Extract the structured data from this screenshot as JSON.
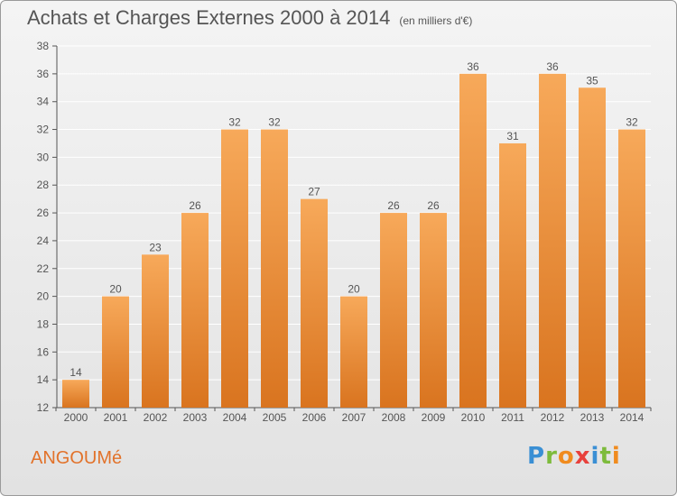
{
  "page": {
    "title": "Achats et Charges Externes 2000 à 2014",
    "unit_note": "(en milliers d'€)",
    "location": "ANGOUMé",
    "logo": "Proxiti"
  },
  "colors": {
    "bar_light": "#f7a95a",
    "bar_dark": "#d9741f",
    "axis": "#555555",
    "grid": "#ffffff",
    "city_text": "#e2722a"
  },
  "chart_data": {
    "type": "bar",
    "title": "Achats et Charges Externes 2000 à 2014",
    "subtitle": "(en milliers d'€)",
    "xlabel": "",
    "ylabel": "",
    "categories": [
      "2000",
      "2001",
      "2002",
      "2003",
      "2004",
      "2005",
      "2006",
      "2007",
      "2008",
      "2009",
      "2010",
      "2011",
      "2012",
      "2013",
      "2014"
    ],
    "values": [
      14,
      20,
      23,
      26,
      32,
      32,
      27,
      20,
      26,
      26,
      36,
      31,
      36,
      35,
      32
    ],
    "data_labels": [
      "14",
      "20",
      "23",
      "26",
      "32",
      "32",
      "27",
      "20",
      "26",
      "26",
      "36",
      "31",
      "36",
      "35",
      "32"
    ],
    "ylim": [
      12,
      38
    ],
    "yticks": [
      12,
      14,
      16,
      18,
      20,
      22,
      24,
      26,
      28,
      30,
      32,
      34,
      36,
      38
    ],
    "ytick_labels": [
      "12",
      "14",
      "16",
      "18",
      "20",
      "22",
      "24",
      "26",
      "28",
      "30",
      "32",
      "34",
      "36",
      "38"
    ],
    "grid": true,
    "legend": "none"
  }
}
